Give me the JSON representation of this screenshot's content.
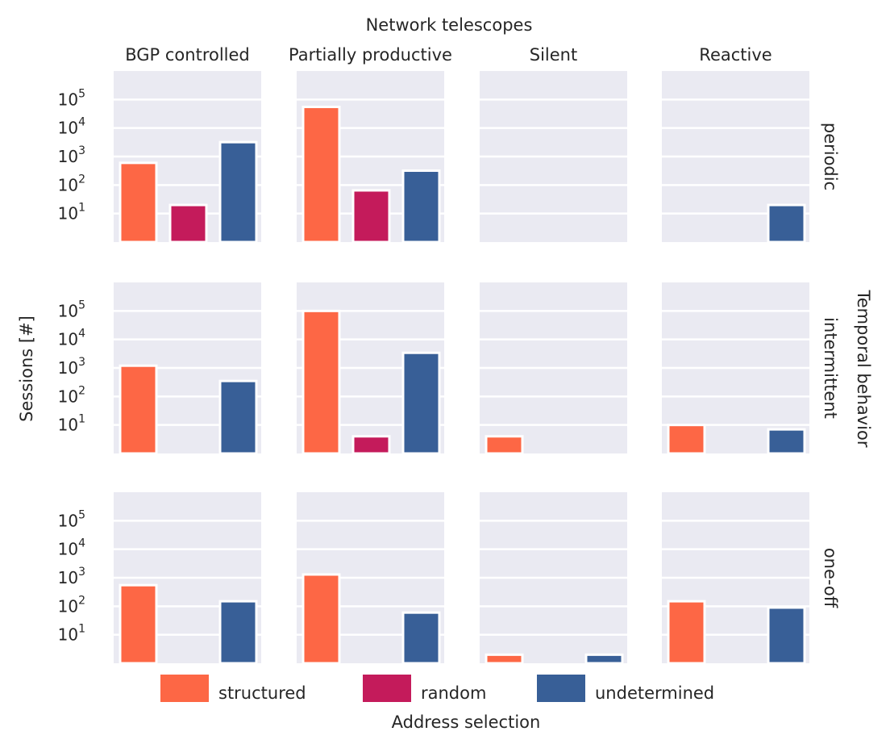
{
  "chart_data": {
    "type": "bar",
    "title": "Network telescopes",
    "xlabel": "Address selection",
    "ylabel": "Sessions [#]",
    "row_axis_label": "Temporal behavior",
    "y_scale": "log",
    "ylim": [
      1,
      1000000
    ],
    "yticks": [
      {
        "value": 10,
        "base": "10",
        "exp": "1"
      },
      {
        "value": 100,
        "base": "10",
        "exp": "2"
      },
      {
        "value": 1000,
        "base": "10",
        "exp": "3"
      },
      {
        "value": 10000,
        "base": "10",
        "exp": "4"
      },
      {
        "value": 100000,
        "base": "10",
        "exp": "5"
      }
    ],
    "grid": true,
    "legend_position": "bottom",
    "columns": [
      "BGP controlled",
      "Partially productive",
      "Silent",
      "Reactive"
    ],
    "rows": [
      "periodic",
      "intermittent",
      "one-off"
    ],
    "categories": [
      "structured",
      "random",
      "undetermined"
    ],
    "colors": {
      "structured": "#fd6745",
      "random": "#c41b5b",
      "undetermined": "#385f97",
      "panel_bg": "#eaeaf2",
      "grid": "#ffffff"
    },
    "panels": [
      {
        "row": "periodic",
        "column": "BGP controlled",
        "values": {
          "structured": 600,
          "random": 20,
          "undetermined": 3200
        }
      },
      {
        "row": "periodic",
        "column": "Partially productive",
        "values": {
          "structured": 55000,
          "random": 65,
          "undetermined": 320
        }
      },
      {
        "row": "periodic",
        "column": "Silent",
        "values": {
          "structured": null,
          "random": null,
          "undetermined": null
        }
      },
      {
        "row": "periodic",
        "column": "Reactive",
        "values": {
          "structured": null,
          "random": null,
          "undetermined": 20
        }
      },
      {
        "row": "intermittent",
        "column": "BGP controlled",
        "values": {
          "structured": 1200,
          "random": null,
          "undetermined": 350
        }
      },
      {
        "row": "intermittent",
        "column": "Partially productive",
        "values": {
          "structured": 100000,
          "random": 4,
          "undetermined": 3400
        }
      },
      {
        "row": "intermittent",
        "column": "Silent",
        "values": {
          "structured": 4,
          "random": null,
          "undetermined": null
        }
      },
      {
        "row": "intermittent",
        "column": "Reactive",
        "values": {
          "structured": 10,
          "random": null,
          "undetermined": 7
        }
      },
      {
        "row": "one-off",
        "column": "BGP controlled",
        "values": {
          "structured": 550,
          "random": null,
          "undetermined": 150
        }
      },
      {
        "row": "one-off",
        "column": "Partially productive",
        "values": {
          "structured": 1300,
          "random": null,
          "undetermined": 60
        }
      },
      {
        "row": "one-off",
        "column": "Silent",
        "values": {
          "structured": 2,
          "random": null,
          "undetermined": 2
        }
      },
      {
        "row": "one-off",
        "column": "Reactive",
        "values": {
          "structured": 150,
          "random": null,
          "undetermined": 90
        }
      }
    ]
  }
}
